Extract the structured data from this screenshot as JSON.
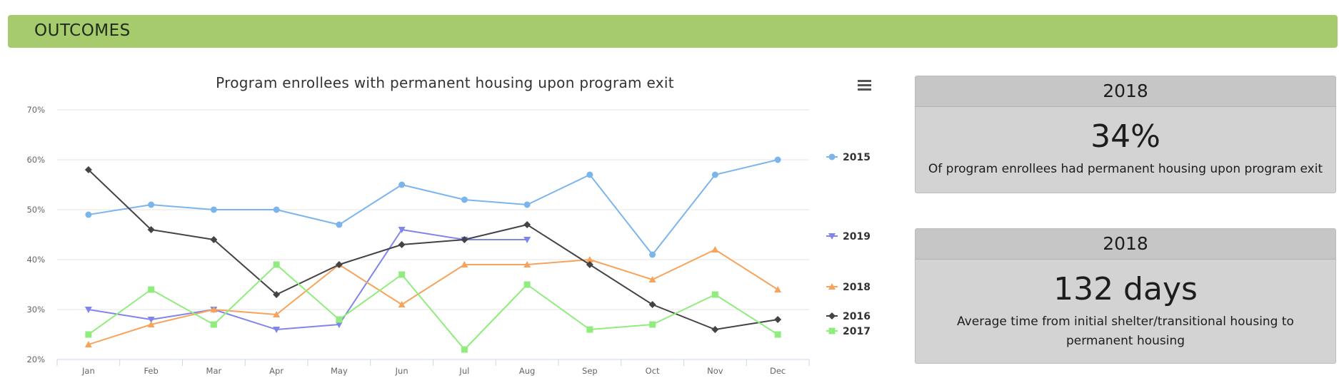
{
  "banner": {
    "title": "OUTCOMES"
  },
  "cards": [
    {
      "year": "2018",
      "value": "34%",
      "description": "Of program enrollees had permanent housing upon program exit"
    },
    {
      "year": "2018",
      "value": "132 days",
      "description": "Average time from initial shelter/transitional housing to permanent housing"
    }
  ],
  "chart_data": {
    "type": "line",
    "title": "Program enrollees with permanent housing upon program exit",
    "categories": [
      "Jan",
      "Feb",
      "Mar",
      "Apr",
      "May",
      "Jun",
      "Jul",
      "Aug",
      "Sep",
      "Oct",
      "Nov",
      "Dec"
    ],
    "ylim": [
      20,
      70
    ],
    "yticks": [
      20,
      30,
      40,
      50,
      60,
      70
    ],
    "ytick_labels": [
      "20%",
      "30%",
      "40%",
      "50%",
      "60%",
      "70%"
    ],
    "grid": true,
    "legend": "right",
    "menu_icon": "hamburger-menu-icon",
    "series": [
      {
        "name": "2015",
        "color": "#7cb5ec",
        "marker": "circle",
        "values": [
          49,
          51,
          50,
          50,
          47,
          55,
          52,
          51,
          57,
          41,
          57,
          60
        ]
      },
      {
        "name": "2019",
        "color": "#8085e9",
        "marker": "triangle-down",
        "values": [
          30,
          28,
          30,
          26,
          27,
          46,
          44,
          44,
          null,
          null,
          null,
          null
        ]
      },
      {
        "name": "2018",
        "color": "#f7a35c",
        "marker": "triangle",
        "values": [
          23,
          27,
          30,
          29,
          39,
          31,
          39,
          39,
          40,
          36,
          42,
          34
        ]
      },
      {
        "name": "2016",
        "color": "#434348",
        "marker": "diamond",
        "values": [
          58,
          46,
          44,
          33,
          39,
          43,
          44,
          47,
          39,
          31,
          26,
          28
        ]
      },
      {
        "name": "2017",
        "color": "#90ed7d",
        "marker": "square",
        "values": [
          25,
          34,
          27,
          39,
          28,
          37,
          22,
          35,
          26,
          27,
          33,
          25
        ]
      }
    ]
  }
}
